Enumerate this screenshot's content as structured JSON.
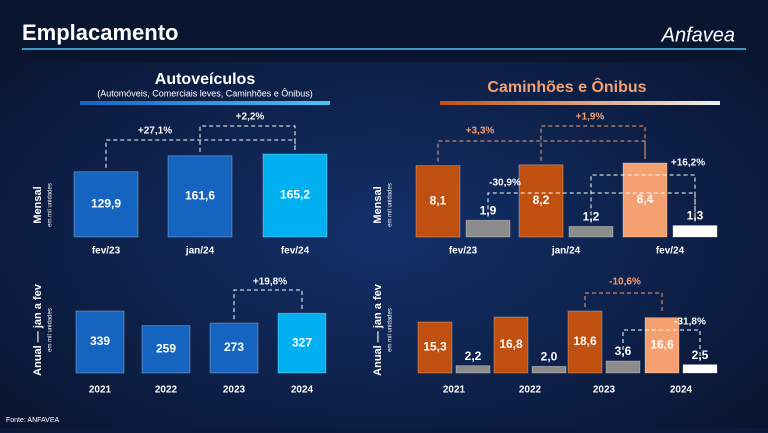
{
  "header": {
    "title": "Emplacamento",
    "logo": "Anfavea"
  },
  "source": "Fonte: ANFAVEA",
  "chart_data": [
    {
      "type": "bar",
      "title": "Autoveículos",
      "subtitle": "(Automóveis, Comerciais leves, Caminhões e Ônibus)",
      "y_label": "Mensal",
      "y_unit": "em mil unidades",
      "categories": [
        "fev/23",
        "jan/24",
        "fev/24"
      ],
      "series": [
        {
          "colors": [
            "#1565c0",
            "#1565c0",
            "#00b0f0"
          ],
          "values": [
            129.9,
            161.6,
            165.2
          ],
          "value_labels": [
            "129,9",
            "161,6",
            "165,2"
          ]
        }
      ],
      "annotations": [
        {
          "text": "+27,1%",
          "color": "#ffffff"
        },
        {
          "text": "+2,2%",
          "color": "#ffffff"
        }
      ]
    },
    {
      "type": "bar",
      "y_label": "Anual — jan a fev",
      "y_unit": "em mil unidades",
      "categories": [
        "2021",
        "2022",
        "2023",
        "2024"
      ],
      "series": [
        {
          "colors": [
            "#1565c0",
            "#1565c0",
            "#1565c0",
            "#00b0f0"
          ],
          "values": [
            339,
            259,
            273,
            327
          ]
        }
      ],
      "annotations": [
        {
          "text": "+19,8%",
          "color": "#ffffff"
        }
      ]
    },
    {
      "type": "bar",
      "title": "Caminhões e Ônibus",
      "y_label": "Mensal",
      "y_unit": "em mil unidades",
      "categories": [
        "fev/23",
        "jan/24",
        "fev/24"
      ],
      "series": [
        {
          "colors": [
            "#c0500f",
            "#c0500f",
            "#f4a070"
          ],
          "values": [
            8.1,
            8.2,
            8.4
          ],
          "value_labels": [
            "8,1",
            "8,2",
            "8,4"
          ]
        },
        {
          "colors": [
            "#8c8c8c",
            "#8c8c8c",
            "#ffffff"
          ],
          "values": [
            1.9,
            1.2,
            1.3
          ],
          "value_labels": [
            "1,9",
            "1,2",
            "1,3"
          ]
        }
      ],
      "annotations": [
        {
          "text": "+3,3%",
          "color": "#f4a070"
        },
        {
          "text": "+1,9%",
          "color": "#f4a070"
        },
        {
          "text": "-30,9%",
          "color": "#ffffff"
        },
        {
          "text": "+16,2%",
          "color": "#ffffff"
        }
      ]
    },
    {
      "type": "bar",
      "y_label": "Anual — jan a fev",
      "y_unit": "em mil unidades",
      "categories": [
        "2021",
        "2022",
        "2023",
        "2024"
      ],
      "series": [
        {
          "colors": [
            "#c0500f",
            "#c0500f",
            "#c0500f",
            "#f4a070"
          ],
          "values": [
            15.3,
            16.8,
            18.6,
            16.6
          ],
          "value_labels": [
            "15,3",
            "16,8",
            "18,6",
            "16,6"
          ]
        },
        {
          "colors": [
            "#8c8c8c",
            "#8c8c8c",
            "#8c8c8c",
            "#ffffff"
          ],
          "values": [
            2.2,
            2.0,
            3.6,
            2.5
          ],
          "value_labels": [
            "2,2",
            "2,0",
            "3,6",
            "2,5"
          ]
        }
      ],
      "annotations": [
        {
          "text": "-10,6%",
          "color": "#f4a070"
        },
        {
          "text": "-31,8%",
          "color": "#ffffff"
        }
      ]
    }
  ]
}
